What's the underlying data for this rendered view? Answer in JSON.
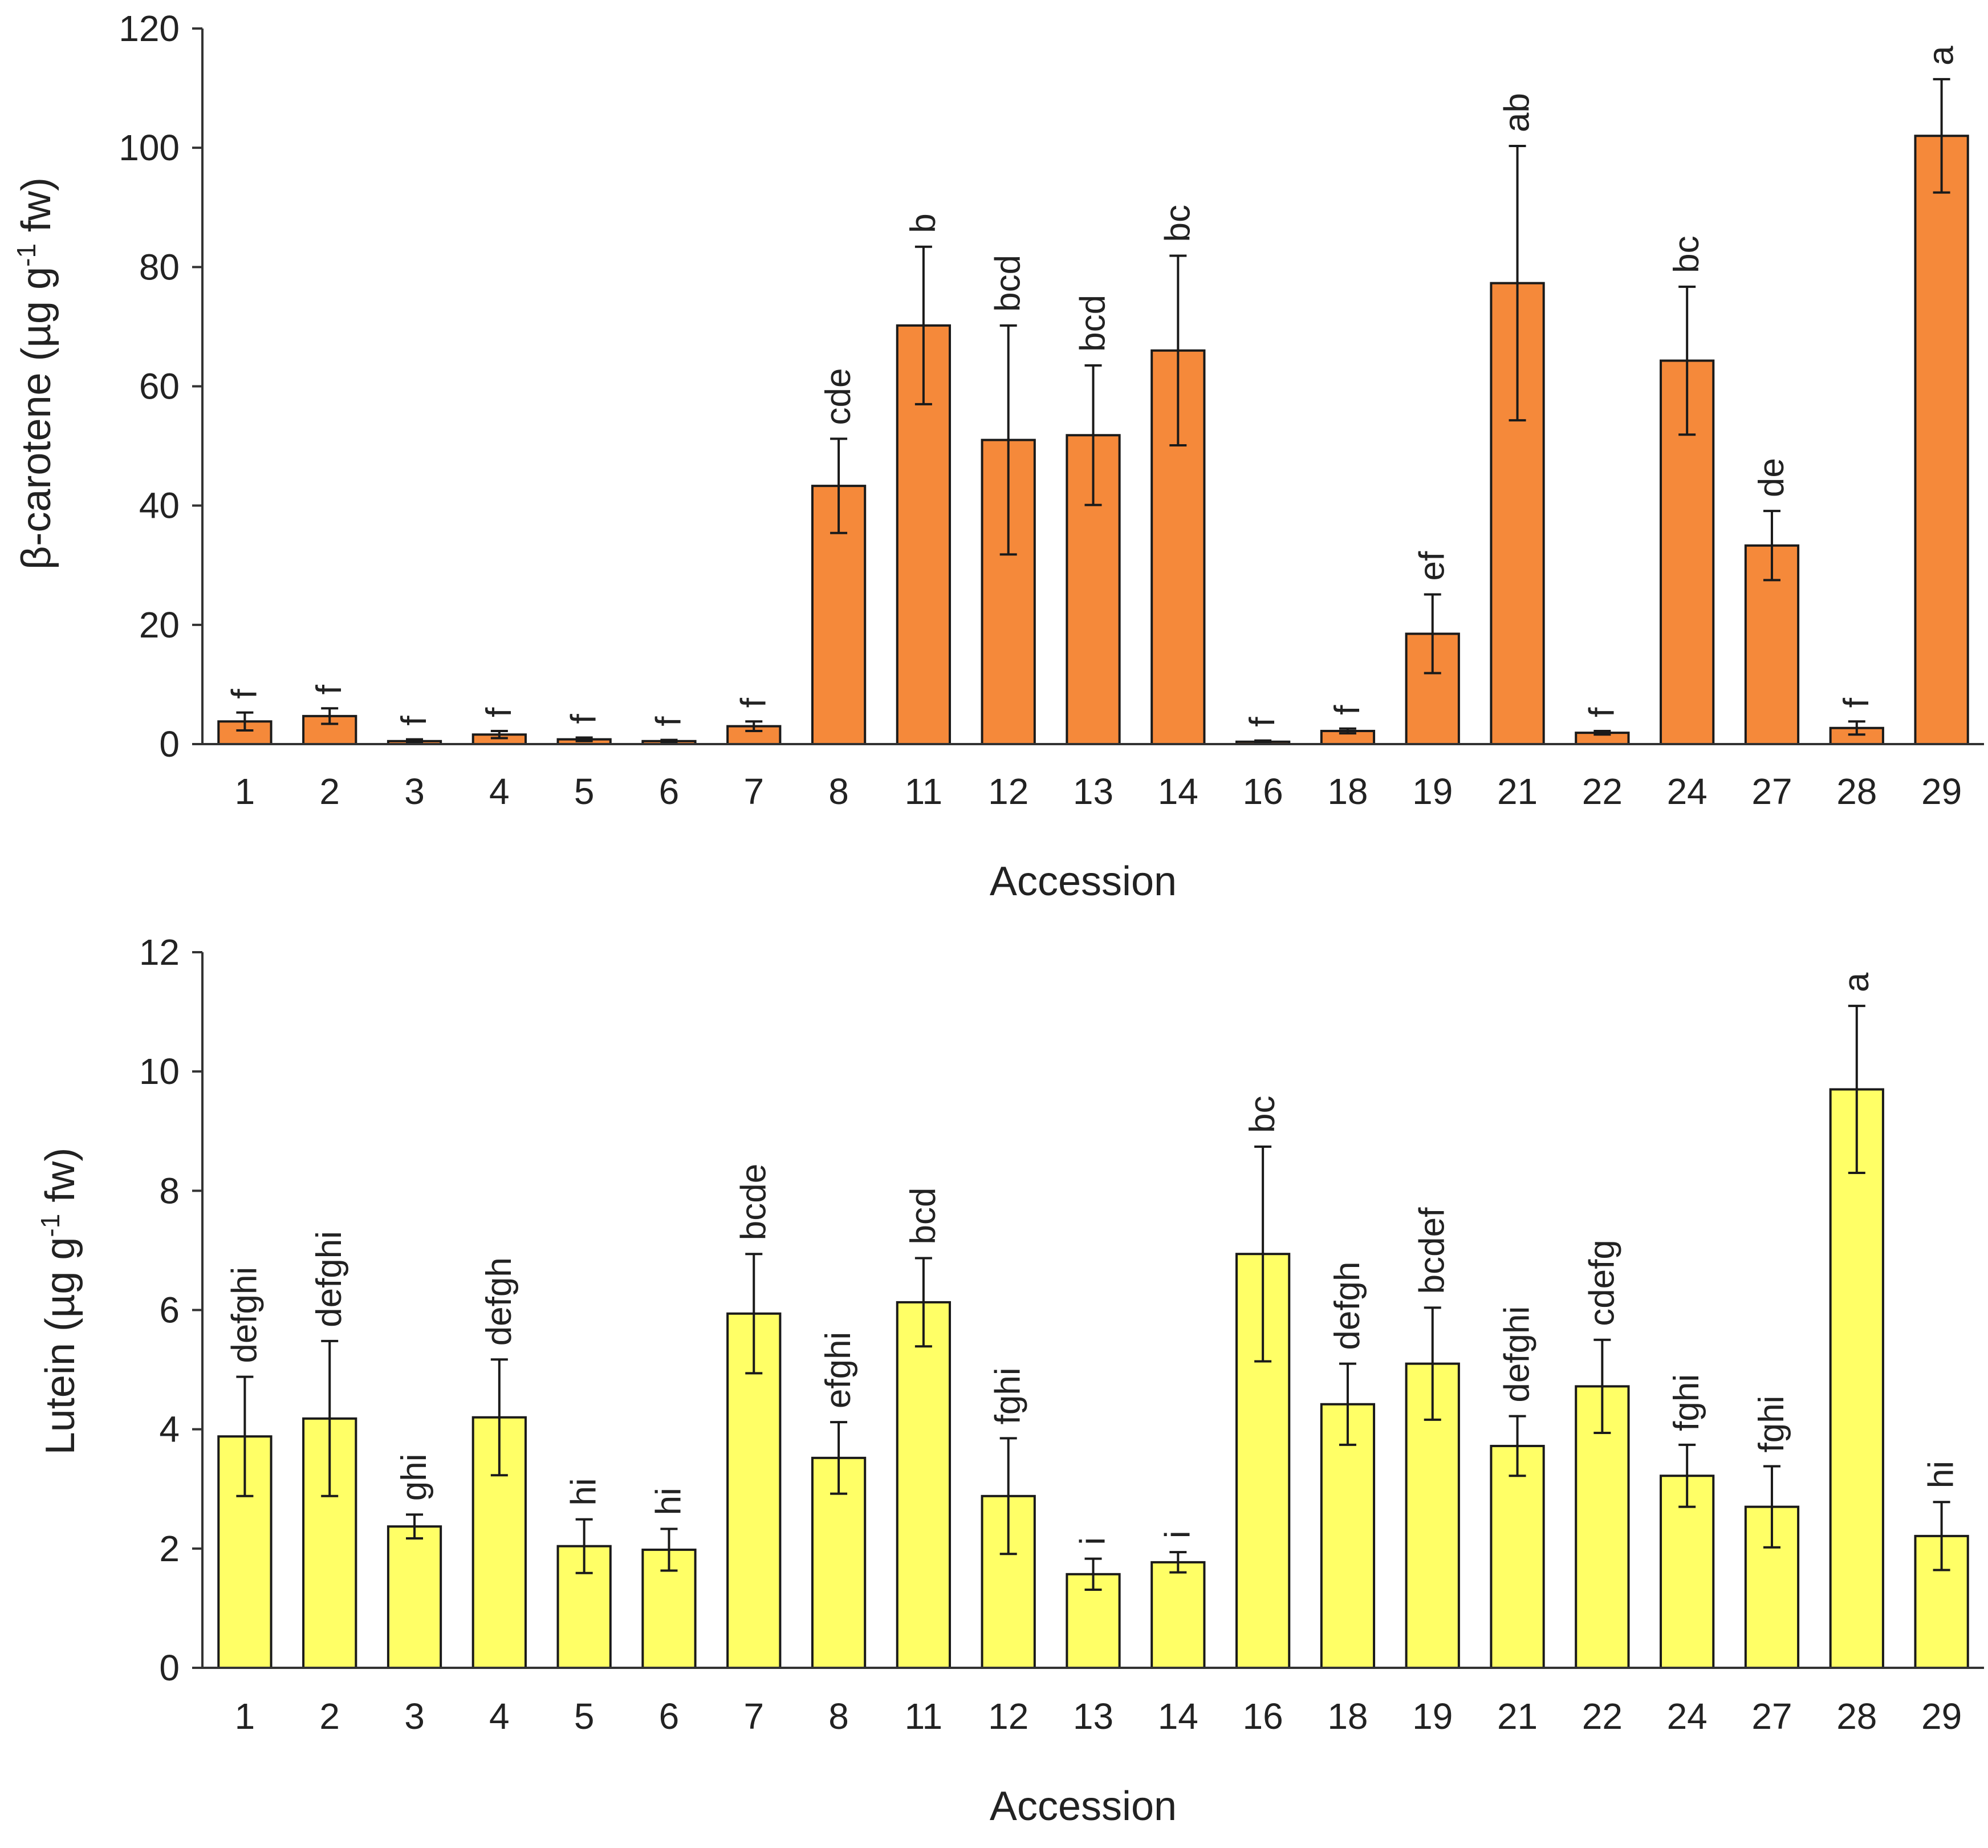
{
  "chart_data": [
    {
      "type": "bar",
      "categories": [
        "1",
        "2",
        "3",
        "4",
        "5",
        "6",
        "7",
        "8",
        "11",
        "12",
        "13",
        "14",
        "16",
        "18",
        "19",
        "21",
        "22",
        "24",
        "27",
        "28",
        "29"
      ],
      "values": [
        3.8,
        4.7,
        0.5,
        1.6,
        0.8,
        0.5,
        3.0,
        43.3,
        70.2,
        51.0,
        51.8,
        66.0,
        0.4,
        2.2,
        18.5,
        77.3,
        1.9,
        64.3,
        33.3,
        2.7,
        102.0
      ],
      "errors": [
        1.5,
        1.3,
        0.3,
        0.6,
        0.3,
        0.2,
        0.8,
        7.9,
        13.2,
        19.2,
        11.7,
        15.9,
        0.2,
        0.4,
        6.6,
        23.0,
        0.3,
        12.4,
        5.8,
        1.1,
        9.5
      ],
      "sig_letters": [
        "f",
        "f",
        "f",
        "f",
        "f",
        "f",
        "f",
        "cde",
        "b",
        "bcd",
        "bcd",
        "bc",
        "f",
        "f",
        "ef",
        "ab",
        "f",
        "bc",
        "de",
        "f",
        "a"
      ],
      "ylim": [
        0,
        120
      ],
      "yticks": [
        0,
        20,
        40,
        60,
        80,
        100,
        120
      ],
      "xlabel": "Accession",
      "ylabel_main": "β-carotene  (µg g",
      "ylabel_sup": "-1",
      "ylabel_tail": " fw)",
      "bar_color": "#F5893A",
      "title": ""
    },
    {
      "type": "bar",
      "categories": [
        "1",
        "2",
        "3",
        "4",
        "5",
        "6",
        "7",
        "8",
        "11",
        "12",
        "13",
        "14",
        "16",
        "18",
        "19",
        "21",
        "22",
        "24",
        "27",
        "28",
        "29"
      ],
      "values": [
        3.88,
        4.18,
        2.37,
        4.2,
        2.04,
        1.98,
        5.94,
        3.52,
        6.13,
        2.88,
        1.57,
        1.77,
        6.94,
        4.42,
        5.1,
        3.72,
        4.72,
        3.22,
        2.7,
        9.7,
        2.21
      ],
      "errors": [
        1.0,
        1.3,
        0.2,
        0.97,
        0.45,
        0.35,
        1.0,
        0.6,
        0.74,
        0.97,
        0.26,
        0.17,
        1.8,
        0.68,
        0.94,
        0.5,
        0.78,
        0.52,
        0.68,
        1.4,
        0.57
      ],
      "sig_letters": [
        "defghi",
        "defghi",
        "ghi",
        "defgh",
        "hi",
        "hi",
        "bcde",
        "efghi",
        "bcd",
        "fghi",
        "i",
        "i",
        "bc",
        "defgh",
        "bcdef",
        "defghi",
        "cdefg",
        "fghi",
        "fghi",
        "a",
        "hi"
      ],
      "ylim": [
        0,
        12
      ],
      "yticks": [
        0,
        2,
        4,
        6,
        8,
        10,
        12
      ],
      "xlabel": "Accession",
      "ylabel_main": "Lutein  (µg g",
      "ylabel_sup": "-1",
      "ylabel_tail": " fw)",
      "bar_color": "#FFFF66",
      "title": ""
    }
  ]
}
